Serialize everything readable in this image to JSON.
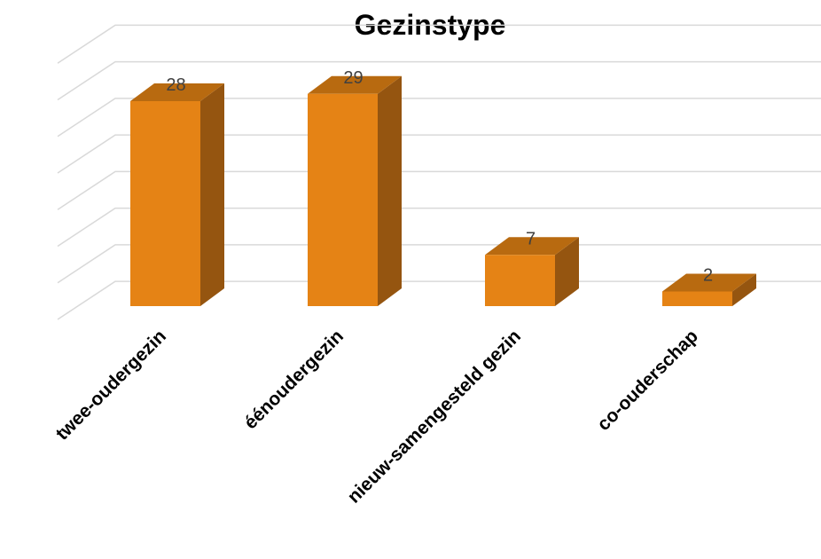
{
  "chart_data": {
    "type": "bar",
    "title": "Gezinstype",
    "categories": [
      "twee-oudergezin",
      "éénoudergezin",
      "nieuw-samengesteld gezin",
      "co-ouderschap"
    ],
    "values": [
      28,
      29,
      7,
      2
    ],
    "data_labels": [
      "28",
      "29",
      "7",
      "2"
    ],
    "xlabel": "",
    "ylabel": "",
    "ylim": [
      0,
      35
    ],
    "grid": true,
    "style": "3d-column",
    "colors": {
      "front": "#E58315",
      "top": "#B86A10",
      "side": "#955510",
      "grid": "#D9D9D9"
    }
  }
}
